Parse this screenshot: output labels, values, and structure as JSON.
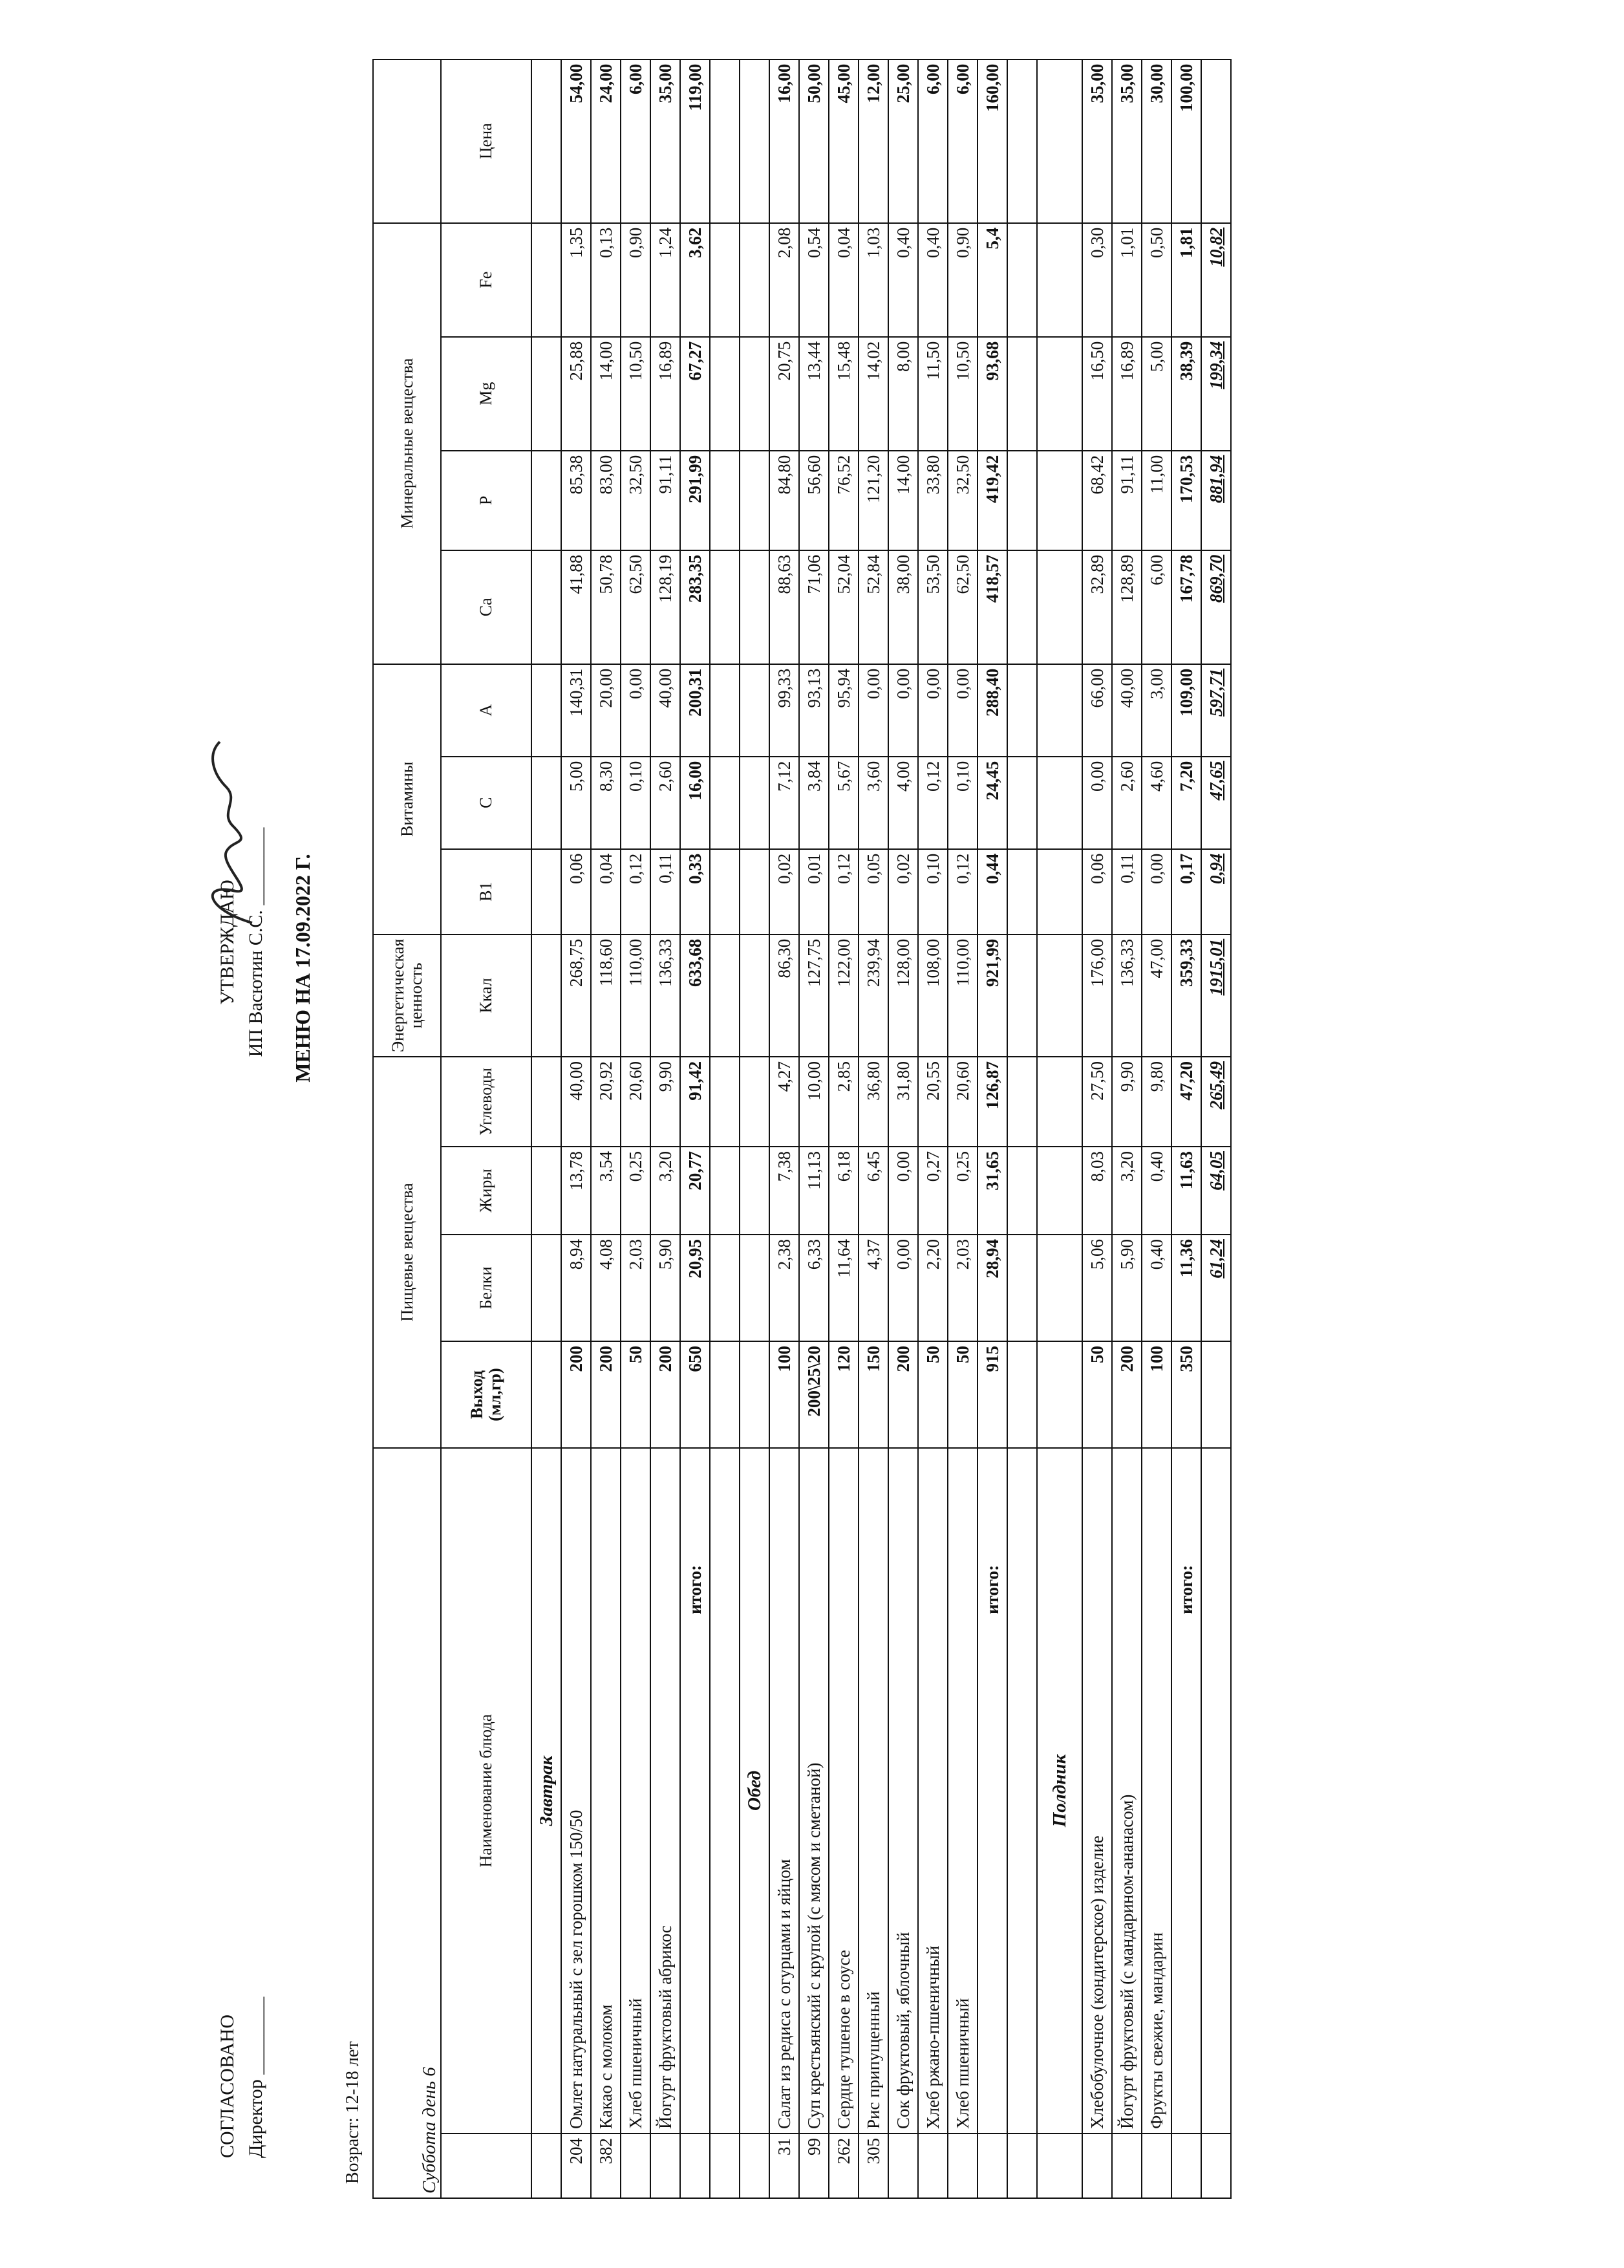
{
  "header": {
    "agreed": "СОГЛАСОВАНО",
    "director": "Директор ________",
    "approve": "УТВЕРЖДАЮ",
    "approver": "ИП Васютин С.С. ________",
    "title": "МЕНЮ НА 17.09.2022 Г.",
    "age": "Возраст: 12-18 лет"
  },
  "table": {
    "day": "Суббота день 6",
    "groups": {
      "nutrients": "Пищевые вещества",
      "energy": "Энергетическая ценность",
      "vitamins": "Витамины",
      "minerals": "Минеральные вещества"
    },
    "columns": [
      "Наименование блюда",
      "Выход (мл,гр)",
      "Белки",
      "Жиры",
      "Углеводы",
      "Ккал",
      "B1",
      "C",
      "A",
      "Ca",
      "P",
      "Mg",
      "Fe",
      "Цена"
    ],
    "sections": [
      {
        "title": "Завтрак",
        "rows": [
          [
            "204",
            "Омлет натуральный с зел горошком 150/50",
            "200",
            "8,94",
            "13,78",
            "40,00",
            "268,75",
            "0,06",
            "5,00",
            "140,31",
            "41,88",
            "85,38",
            "25,88",
            "1,35",
            "54,00"
          ],
          [
            "382",
            "Какао с молоком",
            "200",
            "4,08",
            "3,54",
            "20,92",
            "118,60",
            "0,04",
            "8,30",
            "20,00",
            "50,78",
            "83,00",
            "14,00",
            "0,13",
            "24,00"
          ],
          [
            "",
            "Хлеб пшеничный",
            "50",
            "2,03",
            "0,25",
            "20,60",
            "110,00",
            "0,12",
            "0,10",
            "0,00",
            "62,50",
            "32,50",
            "10,50",
            "0,90",
            "6,00"
          ],
          [
            "",
            "Йогурт фруктовый абрикос",
            "200",
            "5,90",
            "3,20",
            "9,90",
            "136,33",
            "0,11",
            "2,60",
            "40,00",
            "128,19",
            "91,11",
            "16,89",
            "1,24",
            "35,00"
          ]
        ],
        "total": [
          "",
          "итого:",
          "650",
          "20,95",
          "20,77",
          "91,42",
          "633,68",
          "0,33",
          "16,00",
          "200,31",
          "283,35",
          "291,99",
          "67,27",
          "3,62",
          "119,00"
        ]
      },
      {
        "title": "Обед",
        "rows": [
          [
            "31",
            "Салат из редиса с огурцами и яйцом",
            "100",
            "2,38",
            "7,38",
            "4,27",
            "86,30",
            "0,02",
            "7,12",
            "99,33",
            "88,63",
            "84,80",
            "20,75",
            "2,08",
            "16,00"
          ],
          [
            "99",
            "Суп крестьянский с крупой (с мясом и сметаной)",
            "200\\25\\20",
            "6,33",
            "11,13",
            "10,00",
            "127,75",
            "0,01",
            "3,84",
            "93,13",
            "71,06",
            "56,60",
            "13,44",
            "0,54",
            "50,00"
          ],
          [
            "262",
            "Сердце тушеное в соусе",
            "120",
            "11,64",
            "6,18",
            "2,85",
            "122,00",
            "0,12",
            "5,67",
            "95,94",
            "52,04",
            "76,52",
            "15,48",
            "0,04",
            "45,00"
          ],
          [
            "305",
            "Рис припущенный",
            "150",
            "4,37",
            "6,45",
            "36,80",
            "239,94",
            "0,05",
            "3,60",
            "0,00",
            "52,84",
            "121,20",
            "14,02",
            "1,03",
            "12,00"
          ],
          [
            "",
            "Сок фруктовый, яблочный",
            "200",
            "0,00",
            "0,00",
            "31,80",
            "128,00",
            "0,02",
            "4,00",
            "0,00",
            "38,00",
            "14,00",
            "8,00",
            "0,40",
            "25,00"
          ],
          [
            "",
            "Хлеб ржано-пшеничный",
            "50",
            "2,20",
            "0,27",
            "20,55",
            "108,00",
            "0,10",
            "0,12",
            "0,00",
            "53,50",
            "33,80",
            "11,50",
            "0,40",
            "6,00"
          ],
          [
            "",
            "Хлеб пшеничный",
            "50",
            "2,03",
            "0,25",
            "20,60",
            "110,00",
            "0,12",
            "0,10",
            "0,00",
            "62,50",
            "32,50",
            "10,50",
            "0,90",
            "6,00"
          ]
        ],
        "total": [
          "",
          "итого:",
          "915",
          "28,94",
          "31,65",
          "126,87",
          "921,99",
          "0,44",
          "24,45",
          "288,40",
          "418,57",
          "419,42",
          "93,68",
          "5,4",
          "160,00"
        ]
      },
      {
        "title": "Полдник",
        "rows": [
          [
            "",
            "Хлебобулочное (кондитерское) изделие",
            "50",
            "5,06",
            "8,03",
            "27,50",
            "176,00",
            "0,06",
            "0,00",
            "66,00",
            "32,89",
            "68,42",
            "16,50",
            "0,30",
            "35,00"
          ],
          [
            "",
            "Йогурт фруктовый (с мандарином-ананасом)",
            "200",
            "5,90",
            "3,20",
            "9,90",
            "136,33",
            "0,11",
            "2,60",
            "40,00",
            "128,89",
            "91,11",
            "16,89",
            "1,01",
            "35,00"
          ],
          [
            "",
            "Фрукты свежие, мандарин",
            "100",
            "0,40",
            "0,40",
            "9,80",
            "47,00",
            "0,00",
            "4,60",
            "3,00",
            "6,00",
            "11,00",
            "5,00",
            "0,50",
            "30,00"
          ]
        ],
        "total": [
          "",
          "итого:",
          "350",
          "11,36",
          "11,63",
          "47,20",
          "359,33",
          "0,17",
          "7,20",
          "109,00",
          "167,78",
          "170,53",
          "38,39",
          "1,81",
          "100,00"
        ]
      }
    ],
    "grand_total": [
      "",
      "",
      "",
      "61,24",
      "64,05",
      "265,49",
      "1915,01",
      "0,94",
      "47,65",
      "597,71",
      "869,70",
      "881,94",
      "199,34",
      "10,82",
      ""
    ]
  }
}
